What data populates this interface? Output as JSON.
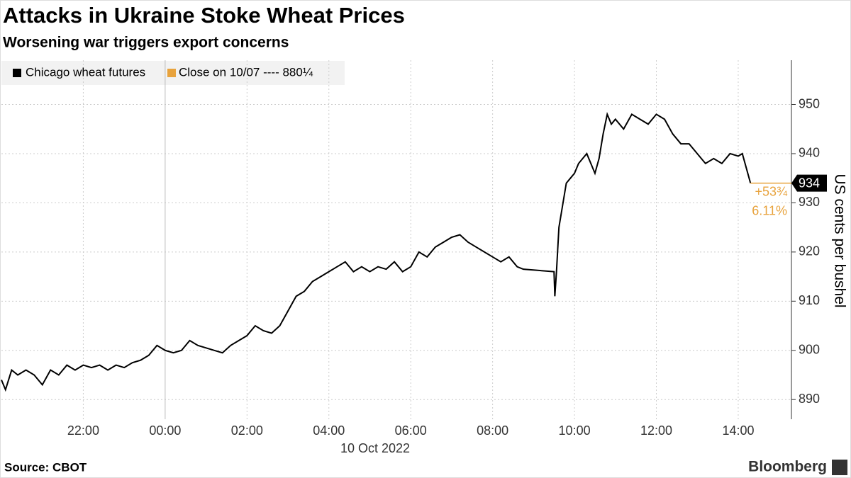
{
  "chart_data": {
    "type": "line",
    "title": "Attacks in Ukraine Stoke Wheat Prices",
    "subtitle": "Worsening war triggers export concerns",
    "y_label": "US cents per bushel",
    "x_date_label": "10 Oct 2022",
    "source": "Source: CBOT",
    "brand": "Bloomberg",
    "close_legend": "Close on 10/07 ---- 880¼",
    "close_color": "#e8a33d",
    "last_label": "934",
    "change_label": "+53¾",
    "change_pct_label": "6.11%",
    "grid": true,
    "xlim": [
      -4,
      15.3
    ],
    "ylim": [
      886,
      959
    ],
    "xticks": [
      {
        "value": -2,
        "label": "22:00"
      },
      {
        "value": 0,
        "label": "00:00"
      },
      {
        "value": 2,
        "label": "02:00"
      },
      {
        "value": 4,
        "label": "04:00"
      },
      {
        "value": 6,
        "label": "06:00"
      },
      {
        "value": 8,
        "label": "08:00"
      },
      {
        "value": 10,
        "label": "10:00"
      },
      {
        "value": 12,
        "label": "12:00"
      },
      {
        "value": 14,
        "label": "14:00"
      }
    ],
    "yticks": [
      890,
      900,
      910,
      920,
      930,
      940,
      950
    ],
    "x": [
      -4,
      -3.9,
      -3.75,
      -3.6,
      -3.4,
      -3.2,
      -3,
      -2.8,
      -2.6,
      -2.4,
      -2.2,
      -2,
      -1.8,
      -1.6,
      -1.4,
      -1.2,
      -1,
      -0.8,
      -0.6,
      -0.4,
      -0.2,
      0,
      0.2,
      0.4,
      0.6,
      0.8,
      1,
      1.2,
      1.4,
      1.6,
      1.8,
      2,
      2.2,
      2.4,
      2.6,
      2.8,
      3,
      3.2,
      3.4,
      3.6,
      3.8,
      4,
      4.2,
      4.4,
      4.6,
      4.8,
      5,
      5.2,
      5.4,
      5.6,
      5.8,
      6,
      6.2,
      6.4,
      6.6,
      6.8,
      7,
      7.2,
      7.4,
      7.6,
      7.8,
      8,
      8.2,
      8.4,
      8.6,
      8.75,
      9.5,
      9.52,
      9.56,
      9.62,
      9.7,
      9.8,
      9.9,
      10,
      10.1,
      10.2,
      10.3,
      10.4,
      10.5,
      10.6,
      10.7,
      10.8,
      10.9,
      11,
      11.2,
      11.4,
      11.6,
      11.8,
      12,
      12.2,
      12.4,
      12.6,
      12.8,
      13,
      13.2,
      13.4,
      13.6,
      13.8,
      14,
      14.1,
      14.2,
      14.3
    ],
    "series": [
      {
        "name": "Chicago wheat futures",
        "color": "#000000",
        "values": [
          894,
          892,
          896,
          895,
          896,
          895,
          893,
          896,
          895,
          897,
          896,
          897,
          896.5,
          897,
          896,
          897,
          896.5,
          897.5,
          898,
          899,
          901,
          900,
          899.5,
          900,
          902,
          901,
          900.5,
          900,
          899.5,
          901,
          902,
          903,
          905,
          904,
          903.5,
          905,
          908,
          911,
          912,
          914,
          915,
          916,
          917,
          918,
          916,
          917,
          916,
          917,
          916.5,
          918,
          916,
          917,
          920,
          919,
          921,
          922,
          923,
          923.5,
          922,
          921,
          920,
          919,
          918,
          919,
          917,
          916.5,
          916,
          911,
          916,
          925,
          929,
          934,
          935,
          936,
          938,
          939,
          940,
          938,
          936,
          939,
          944,
          948,
          946,
          947,
          945,
          948,
          947,
          946,
          948,
          947,
          944,
          942,
          942,
          940,
          938,
          939,
          938,
          940,
          939.5,
          940,
          937,
          934
        ]
      }
    ]
  }
}
